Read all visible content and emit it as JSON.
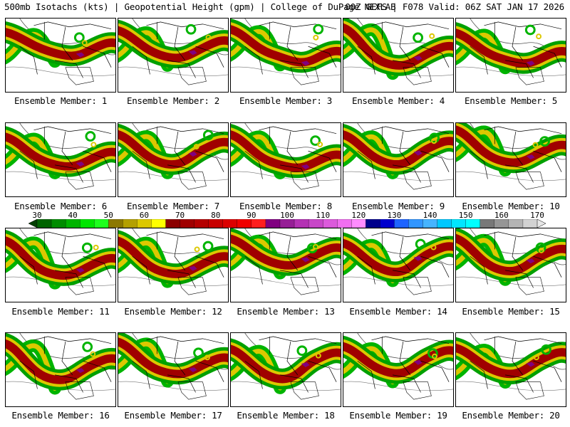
{
  "header": {
    "left": "500mb Isotachs (kts) | Geopotential Height (gpm) | College of DuPage NEXLAB",
    "right": "00Z GEFS | F078 Valid: 06Z SAT JAN 17 2026"
  },
  "panels": [
    {
      "label": "Ensemble Member: 1"
    },
    {
      "label": "Ensemble Member: 2"
    },
    {
      "label": "Ensemble Member: 3"
    },
    {
      "label": "Ensemble Member: 4"
    },
    {
      "label": "Ensemble Member: 5"
    },
    {
      "label": "Ensemble Member: 6"
    },
    {
      "label": "Ensemble Member: 7"
    },
    {
      "label": "Ensemble Member: 8"
    },
    {
      "label": "Ensemble Member: 9"
    },
    {
      "label": "Ensemble Member: 10"
    },
    {
      "label": "Ensemble Member: 11"
    },
    {
      "label": "Ensemble Member: 12"
    },
    {
      "label": "Ensemble Member: 13"
    },
    {
      "label": "Ensemble Member: 14"
    },
    {
      "label": "Ensemble Member: 15"
    },
    {
      "label": "Ensemble Member: 16"
    },
    {
      "label": "Ensemble Member: 17"
    },
    {
      "label": "Ensemble Member: 18"
    },
    {
      "label": "Ensemble Member: 19"
    },
    {
      "label": "Ensemble Member: 20"
    }
  ],
  "colorbar": {
    "labels": [
      "30",
      "40",
      "50",
      "60",
      "70",
      "80",
      "90",
      "100",
      "110",
      "120",
      "130",
      "140",
      "150",
      "160",
      "170"
    ],
    "colors": [
      "#006400",
      "#008c00",
      "#00b400",
      "#00e600",
      "#1eff1e",
      "#8c7800",
      "#b4a000",
      "#dcc800",
      "#ffff00",
      "#8b0000",
      "#a00000",
      "#b40000",
      "#c80000",
      "#dc0000",
      "#f00000",
      "#ff1e1e",
      "#800080",
      "#961e96",
      "#b432b4",
      "#c846c8",
      "#dc5adc",
      "#f06ef0",
      "#ff8cff",
      "#00008b",
      "#0000cd",
      "#1e64ff",
      "#3296ff",
      "#46b4ff",
      "#00c8ff",
      "#00e6ff",
      "#00ffff",
      "#787878",
      "#969696",
      "#b4b4b4",
      "#d2d2d2"
    ]
  }
}
